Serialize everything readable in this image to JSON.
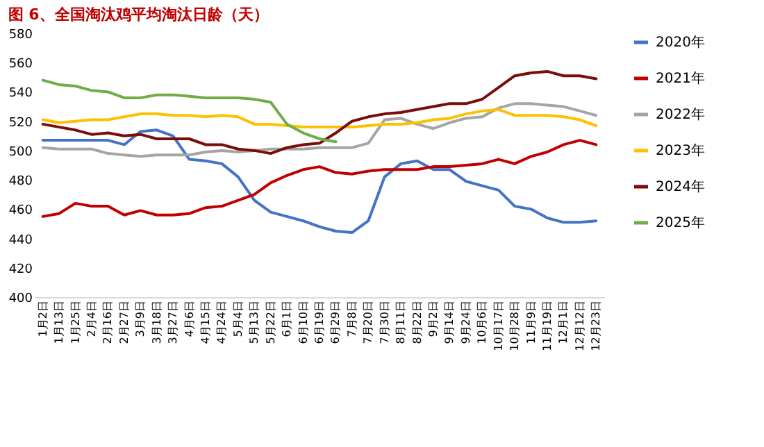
{
  "chart_data": {
    "type": "line",
    "title": "图 6、全国淘汰鸡平均淘汰日龄（天）",
    "categories": [
      "1月2日",
      "1月13日",
      "1月25日",
      "2月4日",
      "2月16日",
      "2月27日",
      "3月9日",
      "3月18日",
      "3月27日",
      "4月6日",
      "4月15日",
      "4月24日",
      "5月4日",
      "5月13日",
      "5月22日",
      "6月1日",
      "6月10日",
      "6月19日",
      "6月29日",
      "7月8日",
      "7月20日",
      "7月30日",
      "8月11日",
      "8月22日",
      "9月2日",
      "9月14日",
      "9月24日",
      "10月6日",
      "10月17日",
      "10月28日",
      "11月9日",
      "11月19日",
      "12月1日",
      "12月12日",
      "12月23日"
    ],
    "series": [
      {
        "name": "2020年",
        "color": "#4472c4",
        "values": [
          507,
          507,
          507,
          507,
          507,
          504,
          513,
          514,
          510,
          494,
          493,
          491,
          482,
          466,
          458,
          455,
          452,
          448,
          445,
          444,
          452,
          482,
          491,
          493,
          487,
          487,
          479,
          476,
          473,
          462,
          460,
          454,
          451,
          451,
          452
        ]
      },
      {
        "name": "2021年",
        "color": "#c00000",
        "values": [
          455,
          457,
          464,
          462,
          462,
          456,
          459,
          456,
          456,
          457,
          461,
          462,
          466,
          470,
          478,
          483,
          487,
          489,
          485,
          484,
          486,
          487,
          487,
          487,
          489,
          489,
          490,
          491,
          494,
          491,
          496,
          499,
          504,
          507,
          504
        ]
      },
      {
        "name": "2022年",
        "color": "#a5a5a5",
        "values": [
          502,
          501,
          501,
          501,
          498,
          497,
          496,
          497,
          497,
          497,
          499,
          500,
          499,
          500,
          501,
          501,
          501,
          502,
          502,
          502,
          505,
          521,
          522,
          518,
          515,
          519,
          522,
          523,
          529,
          532,
          532,
          531,
          530,
          527,
          524
        ]
      },
      {
        "name": "2023年",
        "color": "#ffc000",
        "values": [
          521,
          519,
          520,
          521,
          521,
          523,
          525,
          525,
          524,
          524,
          523,
          524,
          523,
          518,
          518,
          517,
          516,
          516,
          516,
          516,
          517,
          518,
          518,
          519,
          521,
          522,
          525,
          527,
          528,
          524,
          524,
          524,
          523,
          521,
          517
        ]
      },
      {
        "name": "2024年",
        "color": "#7b0c0c",
        "values": [
          518,
          516,
          514,
          511,
          512,
          510,
          511,
          508,
          508,
          508,
          504,
          504,
          501,
          500,
          498,
          502,
          504,
          505,
          512,
          520,
          523,
          525,
          526,
          528,
          530,
          532,
          532,
          535,
          543,
          551,
          553,
          554,
          551,
          551,
          549
        ]
      },
      {
        "name": "2025年",
        "color": "#70ad47",
        "values": [
          548,
          545,
          544,
          541,
          540,
          536,
          536,
          538,
          538,
          537,
          536,
          536,
          536,
          535,
          533,
          518,
          512,
          508,
          506,
          null,
          null,
          null,
          null,
          null,
          null,
          null,
          null,
          null,
          null,
          null,
          null,
          null,
          null,
          null,
          null
        ]
      }
    ],
    "ylim": [
      400,
      580
    ],
    "yticks": [
      400,
      420,
      440,
      460,
      480,
      500,
      520,
      540,
      560,
      580
    ],
    "grid": false,
    "legend": "right",
    "marker": "none",
    "line_style": "solid"
  }
}
